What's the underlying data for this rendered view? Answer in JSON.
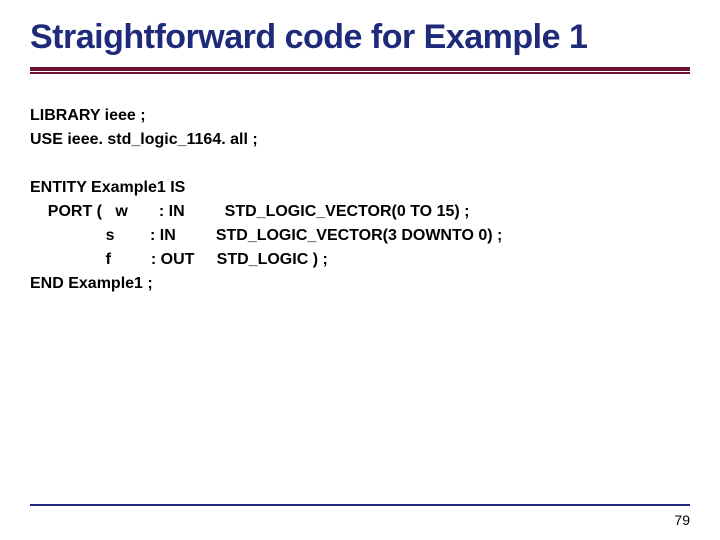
{
  "title": {
    "text": "Straightforward code for Example 1",
    "color": "#1f2a7a",
    "fontsize": 34
  },
  "rules": {
    "thick_color": "#6b1530",
    "thin_color": "#6b1530",
    "footer_color": "#1f2a7a"
  },
  "code": {
    "color": "#000000",
    "fontsize": 16,
    "lines_block1": [
      "LIBRARY ieee ;",
      "USE ieee. std_logic_1164. all ;"
    ],
    "lines_block2": [
      "ENTITY Example1 IS",
      "    PORT (   w       : IN         STD_LOGIC_VECTOR(0 TO 15) ;",
      "                 s        : IN         STD_LOGIC_VECTOR(3 DOWNTO 0) ;",
      "                 f         : OUT     STD_LOGIC ) ;",
      "END Example1 ;"
    ]
  },
  "page_number": "79",
  "page_number_color": "#000000",
  "background_color": "#ffffff"
}
